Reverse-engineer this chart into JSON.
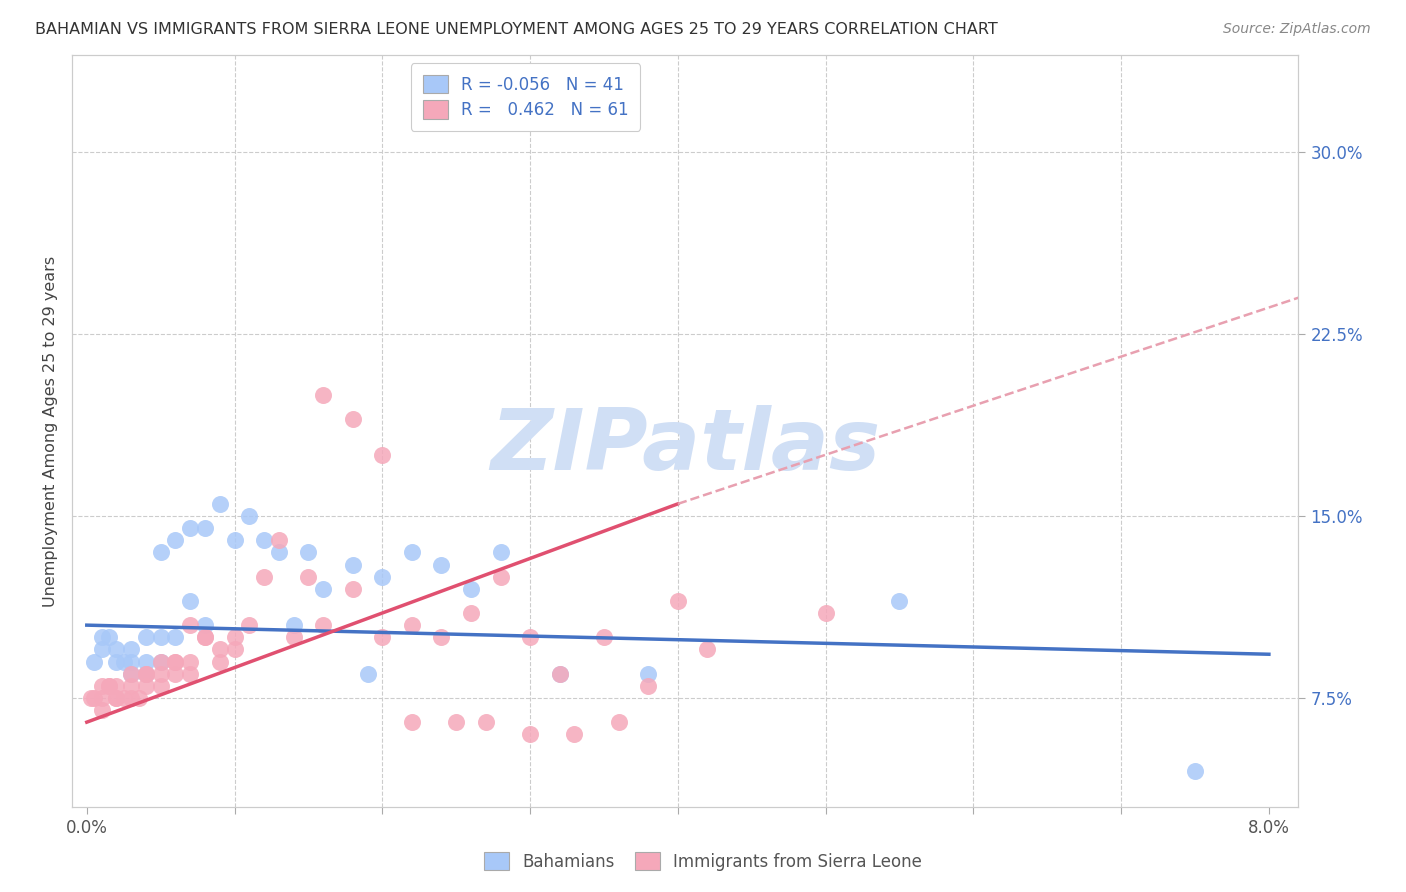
{
  "title": "BAHAMIAN VS IMMIGRANTS FROM SIERRA LEONE UNEMPLOYMENT AMONG AGES 25 TO 29 YEARS CORRELATION CHART",
  "source": "Source: ZipAtlas.com",
  "ylabel": "Unemployment Among Ages 25 to 29 years",
  "y_tick_labels": [
    "7.5%",
    "15.0%",
    "22.5%",
    "30.0%"
  ],
  "ylim": [
    0.03,
    0.34
  ],
  "xlim": [
    -0.001,
    0.082
  ],
  "legend_r_blue": "-0.056",
  "legend_n_blue": "41",
  "legend_r_pink": "0.462",
  "legend_n_pink": "61",
  "blue_color": "#A8C8F8",
  "pink_color": "#F5A8BA",
  "line_blue": "#4472C4",
  "line_pink": "#E05070",
  "line_dashed_color": "#E8A0B0",
  "watermark": "ZIPatlas",
  "watermark_color": "#D0DFF5",
  "blue_scatter_x": [
    0.0005,
    0.001,
    0.001,
    0.0015,
    0.002,
    0.002,
    0.0025,
    0.003,
    0.003,
    0.003,
    0.004,
    0.004,
    0.004,
    0.005,
    0.005,
    0.005,
    0.006,
    0.006,
    0.007,
    0.007,
    0.008,
    0.008,
    0.009,
    0.01,
    0.011,
    0.012,
    0.013,
    0.014,
    0.015,
    0.016,
    0.018,
    0.019,
    0.02,
    0.022,
    0.024,
    0.026,
    0.028,
    0.032,
    0.038,
    0.055,
    0.075
  ],
  "blue_scatter_y": [
    0.09,
    0.1,
    0.095,
    0.1,
    0.09,
    0.095,
    0.09,
    0.085,
    0.09,
    0.095,
    0.1,
    0.09,
    0.085,
    0.135,
    0.1,
    0.09,
    0.14,
    0.1,
    0.145,
    0.115,
    0.145,
    0.105,
    0.155,
    0.14,
    0.15,
    0.14,
    0.135,
    0.105,
    0.135,
    0.12,
    0.13,
    0.085,
    0.125,
    0.135,
    0.13,
    0.12,
    0.135,
    0.085,
    0.085,
    0.115,
    0.045
  ],
  "pink_scatter_x": [
    0.0003,
    0.0005,
    0.001,
    0.001,
    0.001,
    0.0015,
    0.0015,
    0.002,
    0.002,
    0.002,
    0.0025,
    0.003,
    0.003,
    0.003,
    0.0035,
    0.004,
    0.004,
    0.004,
    0.005,
    0.005,
    0.005,
    0.006,
    0.006,
    0.006,
    0.007,
    0.007,
    0.007,
    0.008,
    0.008,
    0.009,
    0.009,
    0.01,
    0.01,
    0.011,
    0.012,
    0.013,
    0.014,
    0.015,
    0.016,
    0.018,
    0.02,
    0.022,
    0.024,
    0.026,
    0.028,
    0.03,
    0.032,
    0.035,
    0.038,
    0.042,
    0.022,
    0.025,
    0.027,
    0.03,
    0.033,
    0.036,
    0.016,
    0.018,
    0.02,
    0.04,
    0.05
  ],
  "pink_scatter_y": [
    0.075,
    0.075,
    0.075,
    0.08,
    0.07,
    0.08,
    0.08,
    0.075,
    0.075,
    0.08,
    0.075,
    0.08,
    0.085,
    0.075,
    0.075,
    0.085,
    0.08,
    0.085,
    0.09,
    0.085,
    0.08,
    0.09,
    0.085,
    0.09,
    0.105,
    0.09,
    0.085,
    0.1,
    0.1,
    0.09,
    0.095,
    0.1,
    0.095,
    0.105,
    0.125,
    0.14,
    0.1,
    0.125,
    0.105,
    0.12,
    0.1,
    0.105,
    0.1,
    0.11,
    0.125,
    0.1,
    0.085,
    0.1,
    0.08,
    0.095,
    0.065,
    0.065,
    0.065,
    0.06,
    0.06,
    0.065,
    0.2,
    0.19,
    0.175,
    0.115,
    0.11
  ],
  "blue_line_x0": 0.0,
  "blue_line_y0": 0.105,
  "blue_line_x1": 0.08,
  "blue_line_y1": 0.093,
  "pink_line_x0": 0.0,
  "pink_line_y0": 0.065,
  "pink_line_x1": 0.04,
  "pink_line_y1": 0.155,
  "dashed_line_x0": 0.04,
  "dashed_line_y0": 0.155,
  "dashed_line_x1": 0.082,
  "dashed_line_y1": 0.24
}
